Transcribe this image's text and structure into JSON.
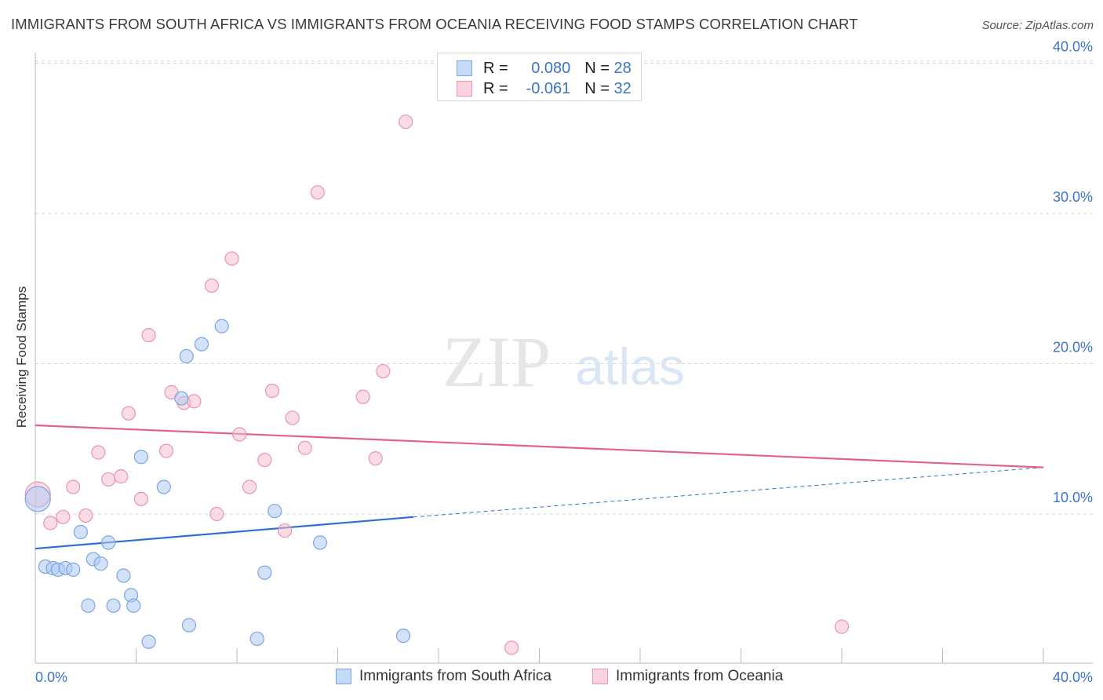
{
  "title": "IMMIGRANTS FROM SOUTH AFRICA VS IMMIGRANTS FROM OCEANIA RECEIVING FOOD STAMPS CORRELATION CHART",
  "source": "Source: ZipAtlas.com",
  "watermark": {
    "zip": "ZIP",
    "atlas": "atlas"
  },
  "legend": {
    "r_label": "R =",
    "n_label": "N =",
    "rows": [
      {
        "r": "0.080",
        "n": "28"
      },
      {
        "r": "-0.061",
        "n": "32"
      }
    ]
  },
  "colors": {
    "blue_fill": "#aecbf2",
    "blue_stroke": "#7aa6e0",
    "blue_line": "#2f6fd0",
    "pink_fill": "#f6bfd0",
    "pink_stroke": "#ea93b0",
    "pink_line": "#e0628f",
    "axis_text": "#3b74c9",
    "grid": "#d6d6d6"
  },
  "chart_data": {
    "type": "scatter",
    "title": "IMMIGRANTS FROM SOUTH AFRICA VS IMMIGRANTS FROM OCEANIA RECEIVING FOOD STAMPS CORRELATION CHART",
    "xlabel": "",
    "ylabel": "Receiving Food Stamps",
    "xlim": [
      0,
      40
    ],
    "ylim": [
      0,
      40
    ],
    "x_tick_labels": [
      "0.0%",
      "40.0%"
    ],
    "y_ticks": [
      10,
      20,
      30,
      40
    ],
    "y_tick_labels": [
      "10.0%",
      "20.0%",
      "30.0%",
      "40.0%"
    ],
    "grid": true,
    "series": [
      {
        "name": "Immigrants from South Africa",
        "r": 0.08,
        "n": 28,
        "points": [
          {
            "x": 0.1,
            "y": 11.0,
            "big": true
          },
          {
            "x": 0.4,
            "y": 6.5
          },
          {
            "x": 0.7,
            "y": 6.4
          },
          {
            "x": 0.9,
            "y": 6.3
          },
          {
            "x": 1.2,
            "y": 6.4
          },
          {
            "x": 1.5,
            "y": 6.3
          },
          {
            "x": 1.8,
            "y": 8.8
          },
          {
            "x": 2.1,
            "y": 3.9
          },
          {
            "x": 2.3,
            "y": 7.0
          },
          {
            "x": 2.6,
            "y": 6.7
          },
          {
            "x": 2.9,
            "y": 8.1
          },
          {
            "x": 3.5,
            "y": 5.9
          },
          {
            "x": 3.1,
            "y": 3.9
          },
          {
            "x": 3.8,
            "y": 4.6
          },
          {
            "x": 3.9,
            "y": 3.9
          },
          {
            "x": 4.2,
            "y": 13.8
          },
          {
            "x": 4.5,
            "y": 1.5
          },
          {
            "x": 5.1,
            "y": 11.8
          },
          {
            "x": 5.8,
            "y": 17.7
          },
          {
            "x": 6.0,
            "y": 20.5
          },
          {
            "x": 6.1,
            "y": 2.6
          },
          {
            "x": 6.6,
            "y": 21.3
          },
          {
            "x": 7.4,
            "y": 22.5
          },
          {
            "x": 8.8,
            "y": 1.7
          },
          {
            "x": 9.1,
            "y": 6.1
          },
          {
            "x": 9.5,
            "y": 10.2
          },
          {
            "x": 11.3,
            "y": 8.1
          },
          {
            "x": 14.6,
            "y": 1.9
          }
        ],
        "trend": {
          "x0": 0,
          "y0": 7.7,
          "x1": 15.0,
          "y1": 9.8,
          "dashed_to_x": 40,
          "dashed_to_y": 13.1
        }
      },
      {
        "name": "Immigrants from Oceania",
        "r": -0.061,
        "n": 32,
        "points": [
          {
            "x": 0.1,
            "y": 11.3,
            "big": true
          },
          {
            "x": 0.6,
            "y": 9.4
          },
          {
            "x": 1.1,
            "y": 9.8
          },
          {
            "x": 1.5,
            "y": 11.8
          },
          {
            "x": 2.0,
            "y": 9.9
          },
          {
            "x": 2.5,
            "y": 14.1
          },
          {
            "x": 2.9,
            "y": 12.3
          },
          {
            "x": 3.4,
            "y": 12.5
          },
          {
            "x": 3.7,
            "y": 16.7
          },
          {
            "x": 4.2,
            "y": 11.0
          },
          {
            "x": 4.5,
            "y": 21.9
          },
          {
            "x": 5.2,
            "y": 14.2
          },
          {
            "x": 5.4,
            "y": 18.1
          },
          {
            "x": 5.9,
            "y": 17.4
          },
          {
            "x": 6.3,
            "y": 17.5
          },
          {
            "x": 7.0,
            "y": 25.2
          },
          {
            "x": 7.2,
            "y": 10.0
          },
          {
            "x": 7.8,
            "y": 27.0
          },
          {
            "x": 8.1,
            "y": 15.3
          },
          {
            "x": 8.5,
            "y": 11.8
          },
          {
            "x": 9.1,
            "y": 13.6
          },
          {
            "x": 9.4,
            "y": 18.2
          },
          {
            "x": 9.9,
            "y": 8.9
          },
          {
            "x": 10.2,
            "y": 16.4
          },
          {
            "x": 10.7,
            "y": 14.4
          },
          {
            "x": 11.2,
            "y": 31.4
          },
          {
            "x": 13.0,
            "y": 17.8
          },
          {
            "x": 13.5,
            "y": 13.7
          },
          {
            "x": 13.8,
            "y": 19.5
          },
          {
            "x": 14.7,
            "y": 36.1
          },
          {
            "x": 18.9,
            "y": 1.1
          },
          {
            "x": 32.0,
            "y": 2.5
          }
        ],
        "trend": {
          "x0": 0,
          "y0": 15.9,
          "x1": 40,
          "y1": 13.1
        }
      }
    ]
  }
}
